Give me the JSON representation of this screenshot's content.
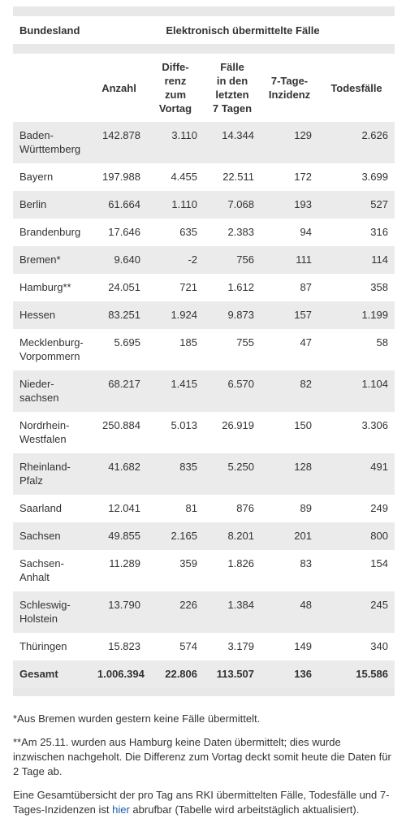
{
  "table": {
    "header": [
      "Bundesland",
      "Elektronisch übermittelte Fälle"
    ],
    "columns": [
      "",
      "Anzahl",
      "Diffe-\nrenz\nzum\nVortag",
      "Fälle\nin den\nletzten\n7 Tagen",
      "7-Tage-\nInzidenz",
      "Todesfälle"
    ],
    "rows": [
      [
        "Baden-\nWürttemberg",
        "142.878",
        "3.110",
        "14.344",
        "129",
        "2.626"
      ],
      [
        "Bayern",
        "197.988",
        "4.455",
        "22.511",
        "172",
        "3.699"
      ],
      [
        "Berlin",
        "61.664",
        "1.110",
        "7.068",
        "193",
        "527"
      ],
      [
        "Brandenburg",
        "17.646",
        "635",
        "2.383",
        "94",
        "316"
      ],
      [
        "Bremen*",
        "9.640",
        "-2",
        "756",
        "111",
        "114"
      ],
      [
        "Hamburg**",
        "24.051",
        "721",
        "1.612",
        "87",
        "358"
      ],
      [
        "Hessen",
        "83.251",
        "1.924",
        "9.873",
        "157",
        "1.199"
      ],
      [
        "Mecklenburg-\nVorpommern",
        "5.695",
        "185",
        "755",
        "47",
        "58"
      ],
      [
        "Nieder-\nsachsen",
        "68.217",
        "1.415",
        "6.570",
        "82",
        "1.104"
      ],
      [
        "Nordrhein-\nWestfalen",
        "250.884",
        "5.013",
        "26.919",
        "150",
        "3.306"
      ],
      [
        "Rheinland-\nPfalz",
        "41.682",
        "835",
        "5.250",
        "128",
        "491"
      ],
      [
        "Saarland",
        "12.041",
        "81",
        "876",
        "89",
        "249"
      ],
      [
        "Sachsen",
        "49.855",
        "2.165",
        "8.201",
        "201",
        "800"
      ],
      [
        "Sachsen-\nAnhalt",
        "11.289",
        "359",
        "1.826",
        "83",
        "154"
      ],
      [
        "Schleswig-\nHolstein",
        "13.790",
        "226",
        "1.384",
        "48",
        "245"
      ],
      [
        "Thüringen",
        "15.823",
        "574",
        "3.179",
        "149",
        "340"
      ],
      [
        "Gesamt",
        "1.006.394",
        "22.806",
        "113.507",
        "136",
        "15.586"
      ]
    ]
  },
  "notes": [
    "*Aus Bremen wurden gestern keine Fälle übermittelt.",
    "**Am 25.11. wurden aus Hamburg keine Daten übermittelt; dies wurde inzwischen nachgeholt. Die Differenz zum Vortag deckt somit heute die Daten für 2 Tage ab.",
    {
      "before": "Eine Gesamtübersicht der pro Tag ans RKI übermittelten Fälle, Todesfälle und 7-Tages-Inzidenzen ist ",
      "link": "hier",
      "after": " abrufbar (Tabelle wird arbeitstäglich aktualisiert)."
    }
  ]
}
